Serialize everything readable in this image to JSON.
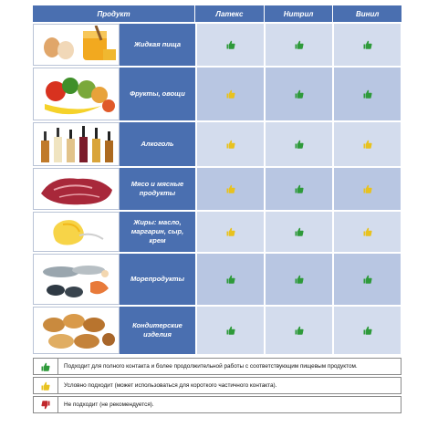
{
  "header": {
    "product": "Продукт",
    "materials": [
      "Латекс",
      "Нитрил",
      "Винил"
    ]
  },
  "rows": [
    {
      "name": "Жидкая пища",
      "marks": [
        "good",
        "good",
        "good"
      ],
      "image": "eggs-honey-image"
    },
    {
      "name": "Фрукты, овощи",
      "marks": [
        "conditional",
        "good",
        "good"
      ],
      "image": "fruits-vegetables-image"
    },
    {
      "name": "Алкоголь",
      "marks": [
        "conditional",
        "good",
        "conditional"
      ],
      "image": "alcohol-bottles-image"
    },
    {
      "name": "Мясо и мясные продукты",
      "marks": [
        "conditional",
        "good",
        "conditional"
      ],
      "image": "raw-meat-image"
    },
    {
      "name": "Жиры: масло, маргарин, сыр, крем",
      "marks": [
        "conditional",
        "good",
        "conditional"
      ],
      "image": "butter-image"
    },
    {
      "name": "Морепродукты",
      "marks": [
        "good",
        "good",
        "good"
      ],
      "image": "seafood-image"
    },
    {
      "name": "Кондитерские изделия",
      "marks": [
        "good",
        "good",
        "good"
      ],
      "image": "pastry-image"
    }
  ],
  "legend": [
    {
      "mark": "good",
      "text": "Подходит для полного контакта и более продолжительной работы с соответствующим пищевым продуктом."
    },
    {
      "mark": "conditional",
      "text": "Условно подходит (может использоваться для короткого частичного контакта)."
    },
    {
      "mark": "bad",
      "text": "Не подходит (не рекомендуется)."
    }
  ],
  "colors": {
    "good": "#2e9a3a",
    "conditional": "#e8c21e",
    "bad": "#c0282d",
    "header": "#4a6fb0"
  }
}
